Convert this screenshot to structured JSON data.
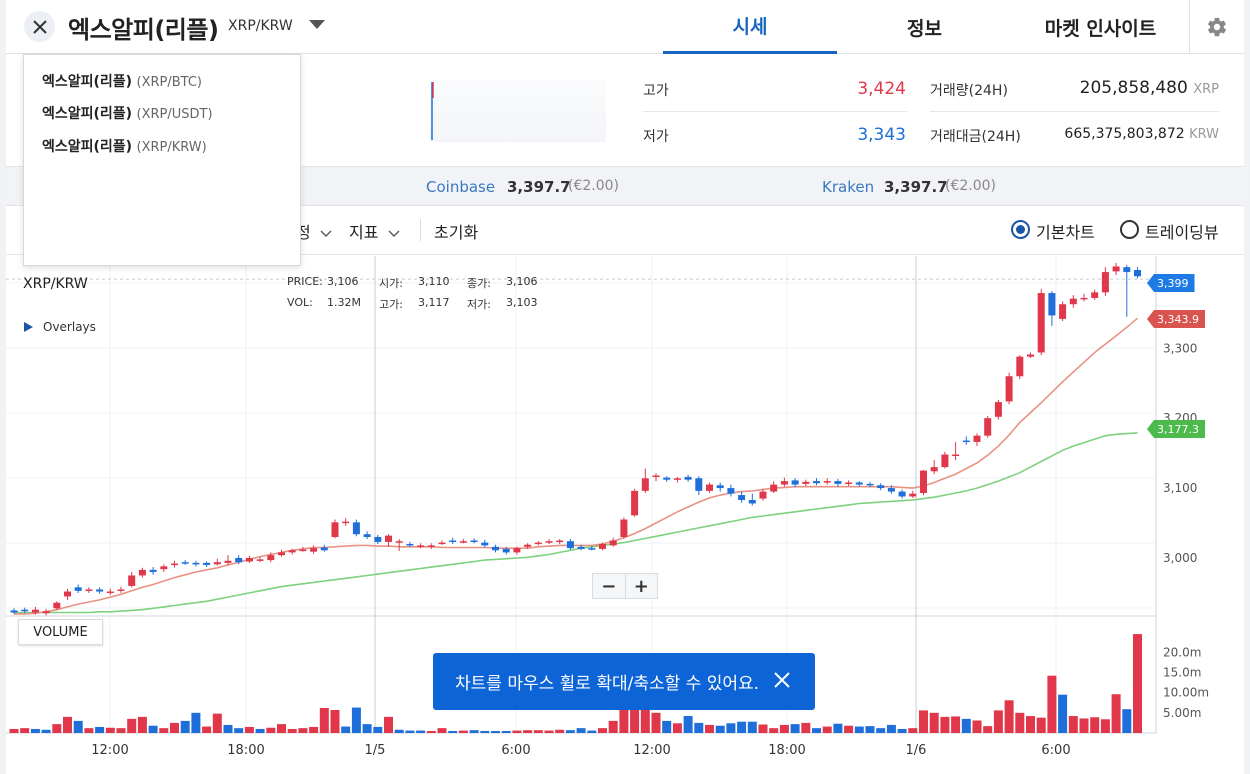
{
  "header": {
    "title": "엑스알피(리플)",
    "pair": "XRP/KRW",
    "tabs": [
      {
        "label": "시세",
        "active": true
      },
      {
        "label": "정보",
        "active": false
      },
      {
        "label": "마켓 인사이트",
        "active": false
      }
    ]
  },
  "stats": {
    "high_label": "고가",
    "high_value": "3,424",
    "low_label": "저가",
    "low_value": "3,343",
    "volume_label": "거래량(24H)",
    "volume_value": "205,858,480",
    "volume_unit": "XRP",
    "amount_label": "거래대금(24H)",
    "amount_value": "665,375,803,872",
    "amount_unit": "KRW"
  },
  "exchanges": [
    {
      "name": "Coinbase",
      "price": "3,397.7",
      "change": "(€2.00)"
    },
    {
      "name": "Kraken",
      "price": "3,397.7",
      "change": "(€2.00)"
    }
  ],
  "toolbar": {
    "settings_fragment": "정",
    "indicator_label": "지표",
    "reset_label": "초기화",
    "basic_chart_label": "기본차트",
    "trading_view_label": "트레이딩뷰",
    "selected_chart": "basic"
  },
  "dropdown": {
    "items": [
      {
        "name": "엑스알피(리플)",
        "pair": "(XRP/BTC)"
      },
      {
        "name": "엑스알피(리플)",
        "pair": "(XRP/USDT)"
      },
      {
        "name": "엑스알피(리플)",
        "pair": "(XRP/KRW)"
      }
    ]
  },
  "chart_info": {
    "symbol": "XRP/KRW",
    "overlays_label": "Overlays",
    "price_label": "PRICE:",
    "price": "3,106",
    "open_label": "시가:",
    "open": "3,110",
    "close_label": "종가:",
    "close": "3,106",
    "vol_label": "VOL:",
    "vol": "1.32M",
    "high_label": "고가:",
    "high": "3,117",
    "low_label": "저가:",
    "low": "3,103",
    "volume_badge": "VOLUME",
    "zoom_out": "−",
    "zoom_in": "+",
    "last_price_tag": "3,399",
    "ma_short_tag": "3,343.9",
    "ma_long_tag": "3,177.3",
    "toast_text": "차트를 마우스 휠로 확대/축소할 수 있어요."
  },
  "colors": {
    "up": "#e0374a",
    "down": "#1e6fd9",
    "accent": "#1764c0",
    "ma_short": "#e89283",
    "ma_long": "#7ed17e",
    "toast": "#0c64d6"
  },
  "chart_data": {
    "type": "candlestick",
    "price_axis_ticks": [
      "3,000",
      "3,100",
      "3,200",
      "3,300"
    ],
    "volume_axis_ticks": [
      "5.00m",
      "10.00m",
      "15.0m",
      "20.0m"
    ],
    "time_axis_ticks": [
      "12:00",
      "18:00",
      "1/5",
      "6:00",
      "12:00",
      "18:00",
      "1/6",
      "6:00"
    ],
    "ylim": [
      2917,
      3432
    ],
    "candles": [
      [
        2925,
        2922,
        2928,
        2920
      ],
      [
        2926,
        2924,
        2929,
        2921
      ],
      [
        2922,
        2926,
        2930,
        2919
      ],
      [
        2921,
        2924,
        2927,
        2918
      ],
      [
        2928,
        2936,
        2938,
        2926
      ],
      [
        2945,
        2952,
        2956,
        2940
      ],
      [
        2958,
        2953,
        2962,
        2950
      ],
      [
        2953,
        2955,
        2958,
        2950
      ],
      [
        2955,
        2952,
        2958,
        2949
      ],
      [
        2950,
        2952,
        2956,
        2947
      ],
      [
        2953,
        2955,
        2959,
        2950
      ],
      [
        2960,
        2975,
        2980,
        2958
      ],
      [
        2975,
        2983,
        2986,
        2972
      ],
      [
        2983,
        2980,
        2987,
        2976
      ],
      [
        2984,
        2988,
        2991,
        2980
      ],
      [
        2990,
        2992,
        2996,
        2986
      ],
      [
        2994,
        2993,
        2997,
        2990
      ],
      [
        2993,
        2992,
        2996,
        2988
      ],
      [
        2993,
        2990,
        2995,
        2987
      ],
      [
        2991,
        2994,
        2999,
        2989
      ],
      [
        2993,
        2996,
        3004,
        2990
      ],
      [
        3000,
        2994,
        3004,
        2991
      ],
      [
        2995,
        3000,
        3003,
        2993
      ],
      [
        2998,
        2998,
        3001,
        2994
      ],
      [
        2997,
        3004,
        3008,
        2994
      ],
      [
        3004,
        3008,
        3012,
        3002
      ],
      [
        3008,
        3011,
        3013,
        3005
      ],
      [
        3011,
        3012,
        3016,
        3009
      ],
      [
        3009,
        3014,
        3018,
        3006
      ],
      [
        3015,
        3011,
        3019,
        3009
      ],
      [
        3030,
        3051,
        3055,
        3028
      ],
      [
        3051,
        3052,
        3057,
        3046
      ],
      [
        3051,
        3034,
        3055,
        3031
      ],
      [
        3034,
        3030,
        3038,
        3027
      ],
      [
        3030,
        3023,
        3033,
        3020
      ],
      [
        3023,
        3032,
        3034,
        3016
      ],
      [
        3023,
        3024,
        3027,
        3010
      ],
      [
        3020,
        3018,
        3023,
        3016
      ],
      [
        3018,
        3018,
        3021,
        3014
      ],
      [
        3017,
        3018,
        3021,
        3013
      ],
      [
        3022,
        3022,
        3025,
        3019
      ],
      [
        3025,
        3023,
        3029,
        3020
      ],
      [
        3023,
        3024,
        3027,
        3021
      ],
      [
        3025,
        3024,
        3028,
        3021
      ],
      [
        3022,
        3018,
        3026,
        3015
      ],
      [
        3016,
        3011,
        3019,
        3008
      ],
      [
        3013,
        3008,
        3016,
        3005
      ],
      [
        3008,
        3014,
        3016,
        3005
      ],
      [
        3016,
        3019,
        3021,
        3013
      ],
      [
        3020,
        3022,
        3024,
        3018
      ],
      [
        3022,
        3024,
        3027,
        3020
      ],
      [
        3024,
        3025,
        3027,
        3020
      ],
      [
        3024,
        3014,
        3027,
        3012
      ],
      [
        3016,
        3013,
        3019,
        3011
      ],
      [
        3014,
        3013,
        3017,
        3011
      ],
      [
        3013,
        3020,
        3022,
        3011
      ],
      [
        3018,
        3025,
        3029,
        3016
      ],
      [
        3030,
        3055,
        3058,
        3028
      ],
      [
        3061,
        3096,
        3099,
        3059
      ],
      [
        3096,
        3114,
        3128,
        3093
      ],
      [
        3116,
        3118,
        3121,
        3110
      ],
      [
        3115,
        3112,
        3117,
        3109
      ],
      [
        3112,
        3114,
        3116,
        3108
      ],
      [
        3116,
        3112,
        3119,
        3109
      ],
      [
        3114,
        3096,
        3117,
        3090
      ],
      [
        3096,
        3105,
        3108,
        3093
      ],
      [
        3104,
        3100,
        3108,
        3095
      ],
      [
        3100,
        3092,
        3105,
        3088
      ],
      [
        3090,
        3083,
        3095,
        3079
      ],
      [
        3083,
        3078,
        3092,
        3075
      ],
      [
        3085,
        3095,
        3099,
        3082
      ],
      [
        3095,
        3105,
        3110,
        3093
      ],
      [
        3105,
        3110,
        3115,
        3102
      ],
      [
        3111,
        3105,
        3114,
        3101
      ],
      [
        3106,
        3109,
        3112,
        3103
      ],
      [
        3110,
        3107,
        3114,
        3104
      ],
      [
        3108,
        3110,
        3114,
        3105
      ],
      [
        3110,
        3106,
        3113,
        3102
      ],
      [
        3106,
        3108,
        3111,
        3103
      ],
      [
        3108,
        3105,
        3110,
        3102
      ],
      [
        3106,
        3104,
        3109,
        3101
      ],
      [
        3104,
        3100,
        3107,
        3097
      ],
      [
        3100,
        3095,
        3104,
        3092
      ],
      [
        3095,
        3088,
        3098,
        3085
      ],
      [
        3088,
        3092,
        3096,
        3086
      ],
      [
        3093,
        3125,
        3126,
        3090
      ],
      [
        3124,
        3130,
        3140,
        3120
      ],
      [
        3130,
        3148,
        3152,
        3128
      ],
      [
        3148,
        3148,
        3166,
        3140
      ],
      [
        3168,
        3166,
        3174,
        3162
      ],
      [
        3166,
        3175,
        3178,
        3160
      ],
      [
        3175,
        3200,
        3203,
        3172
      ],
      [
        3202,
        3223,
        3226,
        3198
      ],
      [
        3224,
        3260,
        3265,
        3220
      ],
      [
        3260,
        3288,
        3290,
        3256
      ],
      [
        3288,
        3291,
        3294,
        3286
      ],
      [
        3294,
        3379,
        3385,
        3290
      ],
      [
        3379,
        3347,
        3382,
        3332
      ],
      [
        3342,
        3363,
        3367,
        3339
      ],
      [
        3363,
        3371,
        3376,
        3358
      ],
      [
        3370,
        3372,
        3378,
        3367
      ],
      [
        3372,
        3380,
        3384,
        3369
      ],
      [
        3380,
        3409,
        3416,
        3375
      ],
      [
        3410,
        3417,
        3422,
        3405
      ],
      [
        3416,
        3409,
        3419,
        3345
      ],
      [
        3412,
        3403,
        3416,
        3400
      ]
    ],
    "ma_short": [
      2920,
      2920,
      2921,
      2923,
      2926,
      2930,
      2934,
      2937,
      2940,
      2944,
      2948,
      2953,
      2958,
      2962,
      2967,
      2972,
      2976,
      2980,
      2983,
      2986,
      2990,
      2994,
      2998,
      3002,
      3005,
      3008,
      3011,
      3013,
      3015,
      3015,
      3016,
      3017,
      3018,
      3018,
      3017,
      3017,
      3016,
      3016,
      3016,
      3016,
      3015,
      3015,
      3015,
      3015,
      3015,
      3014,
      3014,
      3014,
      3014,
      3016,
      3017,
      3018,
      3018,
      3018,
      3018,
      3020,
      3024,
      3029,
      3035,
      3042,
      3050,
      3058,
      3066,
      3073,
      3080,
      3086,
      3090,
      3093,
      3095,
      3096,
      3098,
      3100,
      3101,
      3102,
      3102,
      3102,
      3102,
      3102,
      3102,
      3102,
      3102,
      3102,
      3102,
      3101,
      3100,
      3103,
      3108,
      3114,
      3120,
      3128,
      3136,
      3147,
      3160,
      3176,
      3194,
      3208,
      3222,
      3237,
      3252,
      3266,
      3280,
      3294,
      3306,
      3318,
      3330,
      3343
    ],
    "ma_long": [
      2922,
      2922,
      2922,
      2922,
      2922,
      2922,
      2922,
      2922,
      2923,
      2923,
      2924,
      2925,
      2926,
      2928,
      2930,
      2932,
      2934,
      2936,
      2938,
      2941,
      2944,
      2947,
      2950,
      2953,
      2956,
      2959,
      2961,
      2963,
      2965,
      2967,
      2969,
      2971,
      2973,
      2975,
      2977,
      2979,
      2981,
      2983,
      2985,
      2987,
      2989,
      2991,
      2993,
      2995,
      2997,
      2998,
      2999,
      3000,
      3001,
      3003,
      3005,
      3008,
      3011,
      3014,
      3016,
      3018,
      3020,
      3022,
      3025,
      3028,
      3031,
      3034,
      3037,
      3040,
      3043,
      3046,
      3049,
      3052,
      3055,
      3058,
      3060,
      3062,
      3064,
      3066,
      3068,
      3070,
      3072,
      3074,
      3076,
      3078,
      3079,
      3080,
      3081,
      3082,
      3083,
      3085,
      3087,
      3090,
      3093,
      3096,
      3100,
      3105,
      3110,
      3116,
      3122,
      3130,
      3138,
      3146,
      3154,
      3160,
      3165,
      3170,
      3175,
      3177,
      3178,
      3179
    ],
    "volumes": [
      1.0,
      1.2,
      1.0,
      0.8,
      2.2,
      4.0,
      3.0,
      1.2,
      1.5,
      1.3,
      1.2,
      3.5,
      4.0,
      1.8,
      1.2,
      2.5,
      3.0,
      5.0,
      1.6,
      4.8,
      2.0,
      1.2,
      1.5,
      1.0,
      1.3,
      2.2,
      1.0,
      1.2,
      1.5,
      6.2,
      5.7,
      1.6,
      6.3,
      2.2,
      1.5,
      4.0,
      0.8,
      0.6,
      0.6,
      0.5,
      1.2,
      0.5,
      0.6,
      0.7,
      0.5,
      0.5,
      0.5,
      0.6,
      0.7,
      0.7,
      0.6,
      0.8,
      0.7,
      1.2,
      0.6,
      1.2,
      3.0,
      6.0,
      6.5,
      7.5,
      5.0,
      3.0,
      2.4,
      4.2,
      2.5,
      2.0,
      1.8,
      2.4,
      2.8,
      2.8,
      2.1,
      1.2,
      2.0,
      2.2,
      2.5,
      1.2,
      1.6,
      2.3,
      1.8,
      1.6,
      1.7,
      1.2,
      2.0,
      1.0,
      1.2,
      5.6,
      5.0,
      4.0,
      4.1,
      3.5,
      3.1,
      1.7,
      5.6,
      8.1,
      5.0,
      4.2,
      3.8,
      14.2,
      9.5,
      4.2,
      3.6,
      3.9,
      3.4,
      9.6,
      5.9,
      24.5
    ],
    "volume_up": [
      true,
      true,
      false,
      false,
      true,
      true,
      false,
      true,
      false,
      true,
      true,
      true,
      true,
      false,
      true,
      true,
      false,
      false,
      true,
      true,
      false,
      false,
      true,
      false,
      true,
      true,
      true,
      true,
      true,
      true,
      true,
      false,
      false,
      false,
      false,
      true,
      false,
      false,
      false,
      true,
      true,
      false,
      true,
      false,
      false,
      false,
      false,
      true,
      true,
      true,
      true,
      true,
      false,
      false,
      false,
      true,
      true,
      true,
      true,
      true,
      true,
      false,
      true,
      false,
      false,
      true,
      false,
      false,
      false,
      false,
      true,
      true,
      true,
      false,
      true,
      false,
      true,
      false,
      true,
      false,
      false,
      false,
      false,
      false,
      true,
      true,
      true,
      true,
      true,
      false,
      true,
      true,
      true,
      true,
      true,
      true,
      true,
      true,
      false,
      true,
      true,
      true,
      true,
      true,
      false,
      true
    ]
  }
}
